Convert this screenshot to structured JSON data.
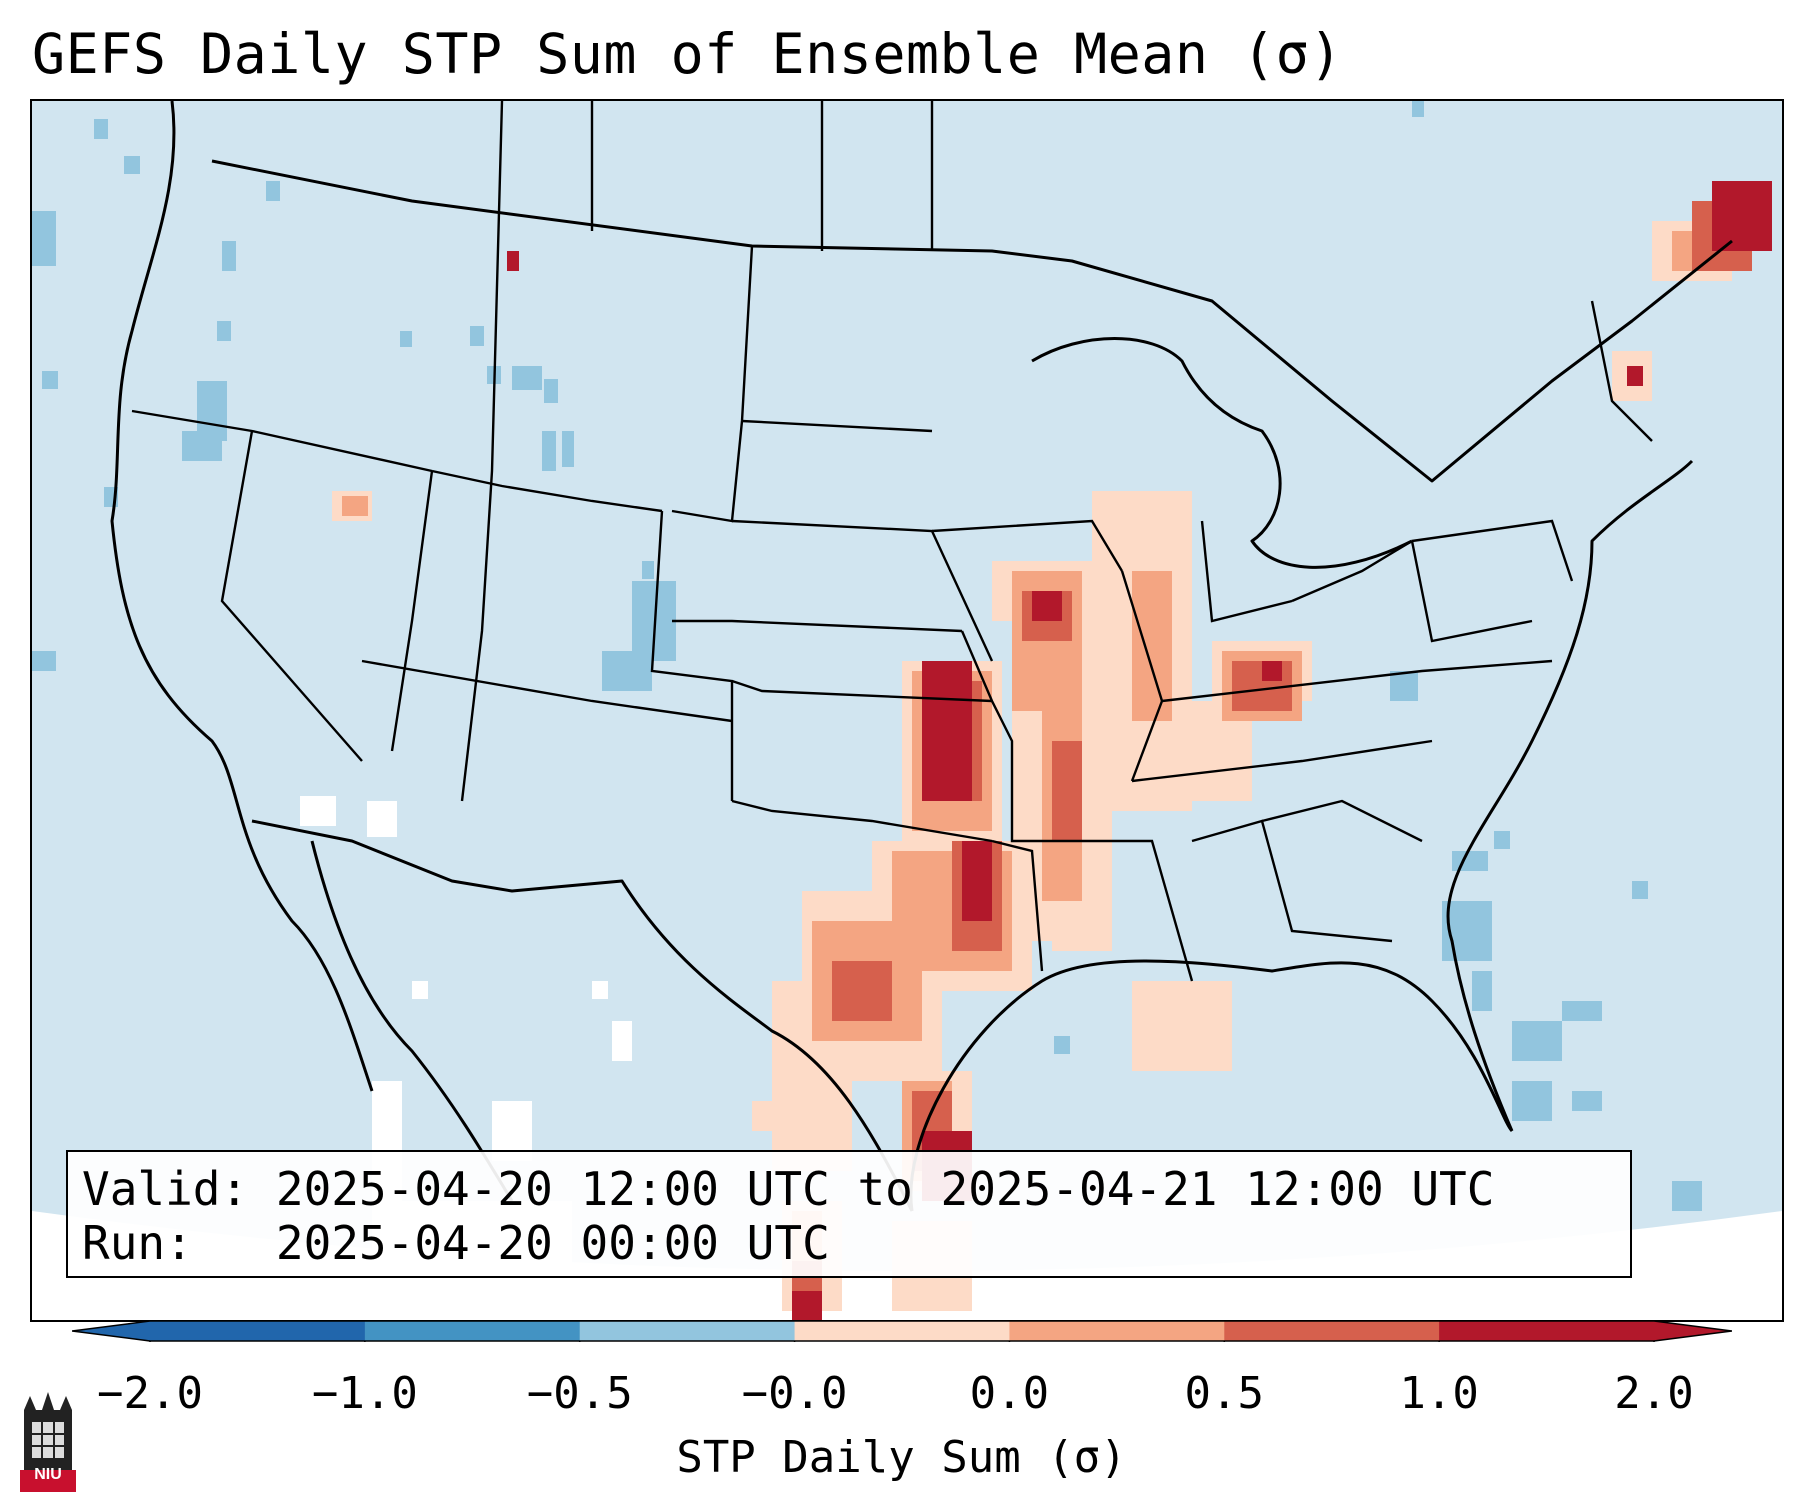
{
  "title": "GEFS Daily STP Sum of Ensemble Mean (σ)",
  "valid_label": "Valid:",
  "valid_value": "2025-04-20 12:00 UTC to 2025-04-21 12:00 UTC",
  "run_label": "Run:",
  "run_value": "2025-04-20 00:00 UTC",
  "colorbar": {
    "label": "STP Daily Sum (σ)",
    "ticks": [
      "−2.0",
      "−1.0",
      "−0.5",
      "−0.0",
      "0.0",
      "0.5",
      "1.0",
      "2.0"
    ],
    "colors": [
      "#2166ac",
      "#4393c3",
      "#92c5de",
      "#d1e5f0",
      "#fddbc7",
      "#f4a582",
      "#d6604d",
      "#b2182b"
    ]
  },
  "map": {
    "background_color": "#d1e5f0",
    "high_color": "#b2182b",
    "mid_color": "#d6604d",
    "low_color": "#f4a582",
    "faint_color": "#fddbc7",
    "neg_color": "#92c5de"
  },
  "logo": {
    "icon": "university-tower-icon",
    "text": "NIU",
    "color": "#c8102e"
  }
}
